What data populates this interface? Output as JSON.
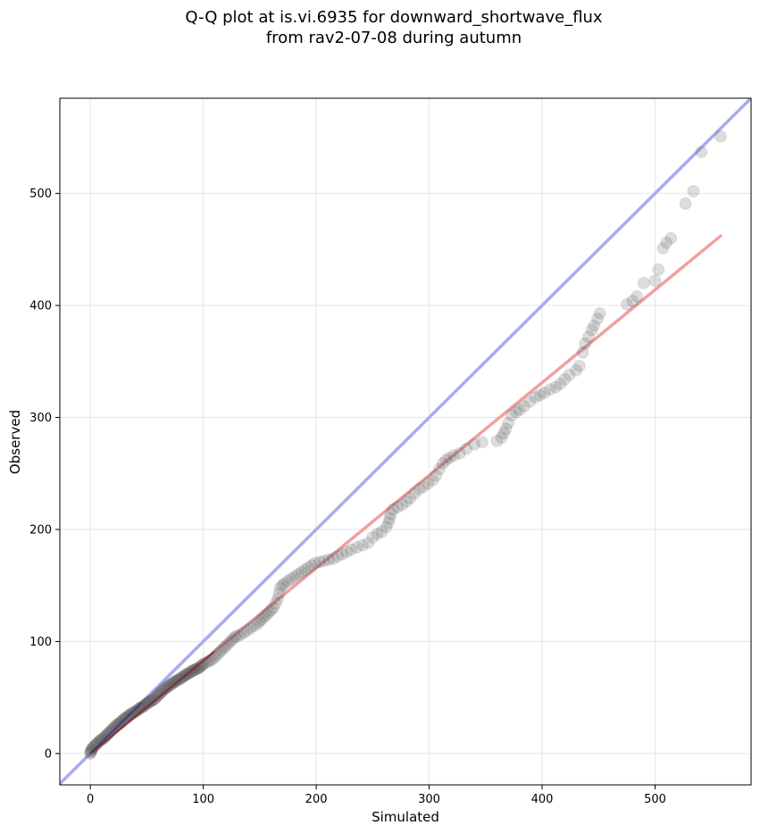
{
  "chart_data": {
    "type": "scatter",
    "title_line1": "Q-Q plot at is.vi.6935 for downward_shortwave_flux",
    "title_line2": "from rav2-07-08 during autumn",
    "xlabel": "Simulated",
    "ylabel": "Observed",
    "xlim": [
      -27,
      585
    ],
    "ylim": [
      -28,
      585
    ],
    "xticks": [
      0,
      100,
      200,
      300,
      400,
      500
    ],
    "yticks": [
      0,
      100,
      200,
      300,
      400,
      500
    ],
    "grid": true,
    "colors": {
      "points": "#555555",
      "identity_line": "#aaaaf0",
      "fit_line": "#f0a0a0",
      "dense_fit_segment": "#8b1a2a",
      "dense_identity_segment": "#2a2a9a"
    },
    "identity_line": {
      "from": [
        -27,
        -27
      ],
      "to": [
        585,
        585
      ]
    },
    "fit_line": {
      "from": [
        0,
        0
      ],
      "to": [
        558,
        462
      ]
    },
    "points": [
      [
        0,
        0
      ],
      [
        0.3,
        1
      ],
      [
        0.6,
        2
      ],
      [
        1,
        3
      ],
      [
        1.4,
        4
      ],
      [
        2,
        5
      ],
      [
        3,
        6
      ],
      [
        4,
        7
      ],
      [
        5,
        8
      ],
      [
        6,
        9
      ],
      [
        7,
        10
      ],
      [
        8,
        11
      ],
      [
        9,
        12
      ],
      [
        10,
        12.5
      ],
      [
        11,
        13
      ],
      [
        12,
        14
      ],
      [
        13,
        15
      ],
      [
        14,
        16
      ],
      [
        15,
        17
      ],
      [
        16,
        18
      ],
      [
        17,
        19
      ],
      [
        18,
        20
      ],
      [
        19,
        21
      ],
      [
        20,
        22
      ],
      [
        21,
        23
      ],
      [
        22,
        24
      ],
      [
        23,
        25
      ],
      [
        24,
        26
      ],
      [
        25,
        26.5
      ],
      [
        26,
        27
      ],
      [
        27,
        28
      ],
      [
        28,
        29
      ],
      [
        29,
        30
      ],
      [
        30,
        31
      ],
      [
        31,
        31.5
      ],
      [
        32,
        32
      ],
      [
        33,
        33
      ],
      [
        34,
        34
      ],
      [
        35,
        34.5
      ],
      [
        36,
        35
      ],
      [
        37,
        36
      ],
      [
        38,
        36.5
      ],
      [
        39,
        37
      ],
      [
        40,
        37.5
      ],
      [
        41,
        38
      ],
      [
        42,
        39
      ],
      [
        43,
        40
      ],
      [
        44,
        40.5
      ],
      [
        45,
        41
      ],
      [
        46,
        41.5
      ],
      [
        47,
        42
      ],
      [
        48,
        43
      ],
      [
        49,
        44
      ],
      [
        50,
        44.5
      ],
      [
        51,
        45
      ],
      [
        52,
        46
      ],
      [
        53,
        46.5
      ],
      [
        54,
        47
      ],
      [
        55,
        47.5
      ],
      [
        56,
        48
      ],
      [
        57,
        49
      ],
      [
        58,
        50
      ],
      [
        59,
        51
      ],
      [
        60,
        52
      ],
      [
        61,
        53
      ],
      [
        62,
        54
      ],
      [
        63,
        55
      ],
      [
        64,
        56
      ],
      [
        65,
        57
      ],
      [
        66,
        58
      ],
      [
        67,
        58.5
      ],
      [
        68,
        59
      ],
      [
        69,
        60
      ],
      [
        70,
        61
      ],
      [
        71,
        61.5
      ],
      [
        72,
        62
      ],
      [
        73,
        63
      ],
      [
        74,
        63.5
      ],
      [
        75,
        64
      ],
      [
        76,
        65
      ],
      [
        77,
        65.5
      ],
      [
        78,
        66
      ],
      [
        79,
        66.5
      ],
      [
        80,
        67
      ],
      [
        81,
        68
      ],
      [
        82,
        68.5
      ],
      [
        83,
        69
      ],
      [
        84,
        70
      ],
      [
        85,
        70.5
      ],
      [
        86,
        71
      ],
      [
        87,
        71.5
      ],
      [
        88,
        72
      ],
      [
        89,
        73
      ],
      [
        90,
        73.5
      ],
      [
        91,
        74
      ],
      [
        92,
        74.5
      ],
      [
        93,
        75
      ],
      [
        94,
        75.5
      ],
      [
        95,
        76
      ],
      [
        96,
        76.5
      ],
      [
        97,
        77
      ],
      [
        98,
        78
      ],
      [
        99,
        79
      ],
      [
        100,
        80
      ],
      [
        102,
        81
      ],
      [
        104,
        82
      ],
      [
        106,
        83
      ],
      [
        108,
        84
      ],
      [
        110,
        86
      ],
      [
        112,
        88
      ],
      [
        114,
        90
      ],
      [
        116,
        92
      ],
      [
        118,
        94
      ],
      [
        120,
        96
      ],
      [
        122,
        98
      ],
      [
        124,
        100
      ],
      [
        126,
        102
      ],
      [
        128,
        104
      ],
      [
        130,
        105
      ],
      [
        133,
        106
      ],
      [
        136,
        108
      ],
      [
        139,
        110
      ],
      [
        142,
        112
      ],
      [
        145,
        114
      ],
      [
        148,
        116
      ],
      [
        150,
        118
      ],
      [
        152,
        120
      ],
      [
        154,
        122
      ],
      [
        156,
        124
      ],
      [
        158,
        126
      ],
      [
        160,
        128
      ],
      [
        162,
        130
      ],
      [
        164,
        134
      ],
      [
        166,
        138
      ],
      [
        167,
        143
      ],
      [
        168,
        148
      ],
      [
        170,
        150
      ],
      [
        172,
        152
      ],
      [
        175,
        154
      ],
      [
        178,
        156
      ],
      [
        181,
        158
      ],
      [
        184,
        160
      ],
      [
        187,
        162
      ],
      [
        190,
        164
      ],
      [
        193,
        166
      ],
      [
        196,
        168
      ],
      [
        199,
        170
      ],
      [
        203,
        171
      ],
      [
        207,
        172
      ],
      [
        211,
        173
      ],
      [
        215,
        174
      ],
      [
        219,
        176
      ],
      [
        223,
        178
      ],
      [
        227,
        180
      ],
      [
        231,
        182
      ],
      [
        236,
        184
      ],
      [
        241,
        186
      ],
      [
        246,
        188
      ],
      [
        250,
        193
      ],
      [
        254,
        196
      ],
      [
        258,
        198
      ],
      [
        262,
        202
      ],
      [
        264,
        206
      ],
      [
        265,
        210
      ],
      [
        266,
        214
      ],
      [
        268,
        218
      ],
      [
        272,
        220
      ],
      [
        276,
        222
      ],
      [
        280,
        225
      ],
      [
        283,
        228
      ],
      [
        287,
        232
      ],
      [
        291,
        236
      ],
      [
        295,
        238
      ],
      [
        299,
        241
      ],
      [
        303,
        244
      ],
      [
        306,
        248
      ],
      [
        309,
        254
      ],
      [
        312,
        259
      ],
      [
        315,
        262
      ],
      [
        318,
        264
      ],
      [
        322,
        266
      ],
      [
        327,
        268
      ],
      [
        333,
        272
      ],
      [
        340,
        276
      ],
      [
        347,
        278
      ],
      [
        360,
        279
      ],
      [
        364,
        282
      ],
      [
        366,
        286
      ],
      [
        368,
        290
      ],
      [
        370,
        295
      ],
      [
        373,
        302
      ],
      [
        377,
        305
      ],
      [
        380,
        307
      ],
      [
        384,
        310
      ],
      [
        389,
        314
      ],
      [
        394,
        318
      ],
      [
        398,
        320
      ],
      [
        402,
        322
      ],
      [
        407,
        325
      ],
      [
        412,
        327
      ],
      [
        416,
        330
      ],
      [
        420,
        334
      ],
      [
        424,
        338
      ],
      [
        430,
        342
      ],
      [
        433,
        346
      ],
      [
        436,
        358
      ],
      [
        438,
        366
      ],
      [
        441,
        372
      ],
      [
        444,
        378
      ],
      [
        446,
        382
      ],
      [
        449,
        388
      ],
      [
        451,
        393
      ],
      [
        475,
        401
      ],
      [
        480,
        404
      ],
      [
        484,
        408
      ],
      [
        490,
        420
      ],
      [
        500,
        422
      ],
      [
        503,
        432
      ],
      [
        507,
        451
      ],
      [
        510,
        456
      ],
      [
        514,
        460
      ],
      [
        527,
        491
      ],
      [
        534,
        502
      ],
      [
        541,
        537
      ],
      [
        558,
        551
      ]
    ]
  }
}
